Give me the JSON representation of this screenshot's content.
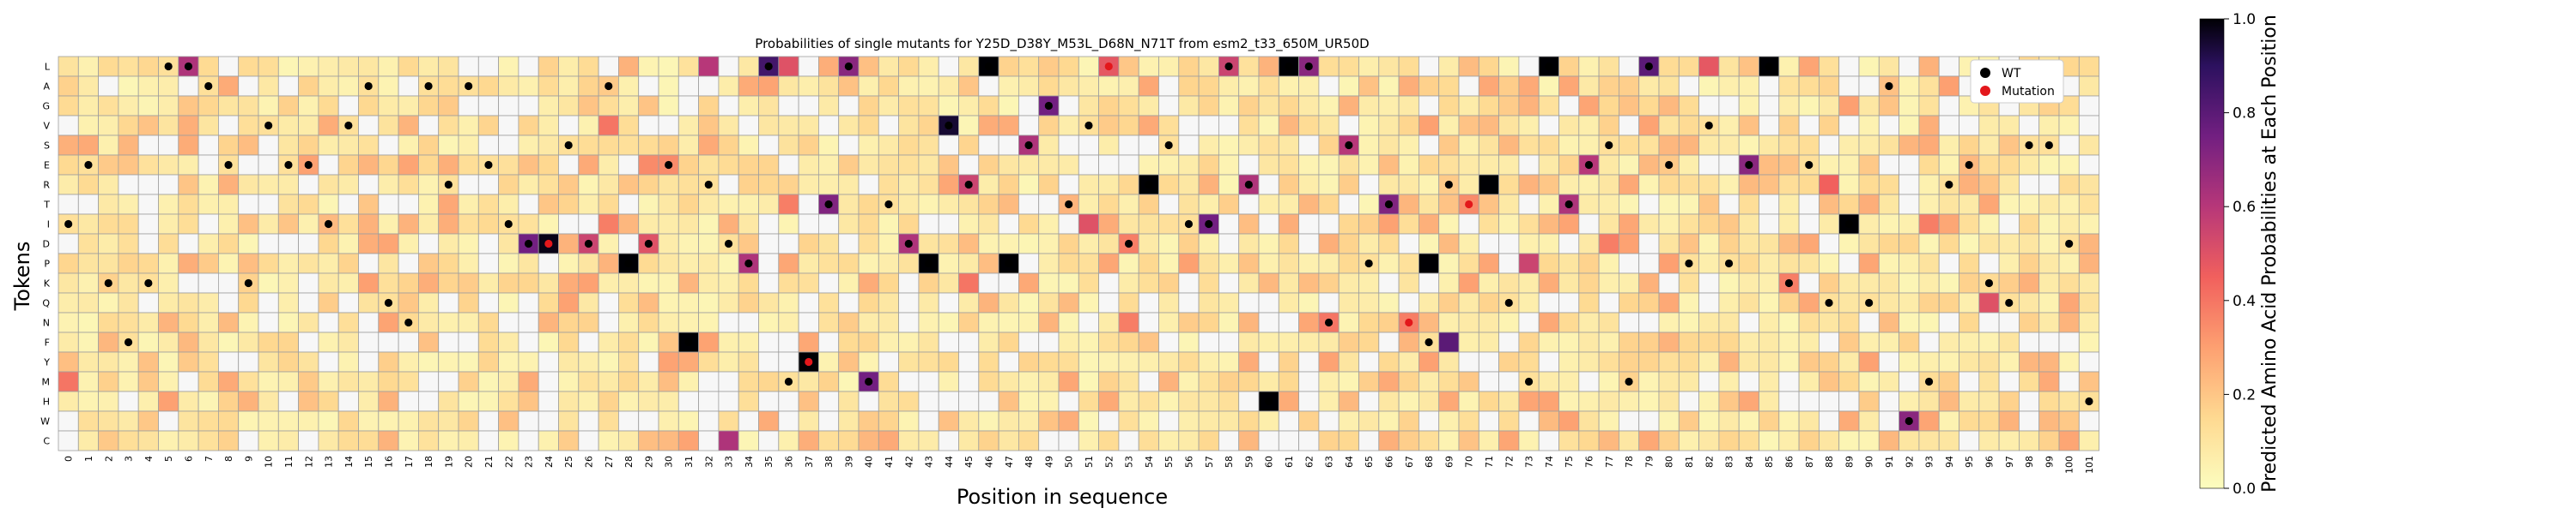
{
  "chart_data": {
    "type": "heatmap",
    "title": "Probabilities of single mutants for Y25D_D38Y_M53L_D68N_N71T from esm2_t33_650M_UR50D",
    "xlabel": "Position in sequence",
    "ylabel": "Tokens",
    "tokens": [
      "L",
      "A",
      "G",
      "V",
      "S",
      "E",
      "R",
      "T",
      "I",
      "D",
      "P",
      "K",
      "Q",
      "N",
      "F",
      "Y",
      "M",
      "H",
      "W",
      "C"
    ],
    "positions": [
      0,
      1,
      2,
      3,
      4,
      5,
      6,
      7,
      8,
      9,
      10,
      11,
      12,
      13,
      14,
      15,
      16,
      17,
      18,
      19,
      20,
      21,
      22,
      23,
      24,
      25,
      26,
      27,
      28,
      29,
      30,
      31,
      32,
      33,
      34,
      35,
      36,
      37,
      38,
      39,
      40,
      41,
      42,
      43,
      44,
      45,
      46,
      47,
      48,
      49,
      50,
      51,
      52,
      53,
      54,
      55,
      56,
      57,
      58,
      59,
      60,
      61,
      62,
      63,
      64,
      65,
      66,
      67,
      68,
      69,
      70,
      71,
      72,
      73,
      74,
      75,
      76,
      77,
      78,
      79,
      80,
      81,
      82,
      83,
      84,
      85,
      86,
      87,
      88,
      89,
      90,
      91,
      92,
      93,
      94,
      95,
      96,
      97,
      98,
      99,
      100,
      101
    ],
    "colorbar": {
      "label": "Predicted Amino Acid Probabilities at Each Position",
      "range": [
        0.0,
        1.0
      ],
      "ticks": [
        "0.0",
        "0.2",
        "0.4",
        "0.6",
        "0.8",
        "1.0"
      ]
    },
    "legend": {
      "placement": "top-right",
      "entries": [
        {
          "label": "WT",
          "color": "#000000"
        },
        {
          "label": "Mutation",
          "color": "#e3171b"
        }
      ]
    },
    "wt": [
      [
        0,
        "I"
      ],
      [
        1,
        "E"
      ],
      [
        2,
        "K"
      ],
      [
        3,
        "F"
      ],
      [
        4,
        "K"
      ],
      [
        5,
        "L"
      ],
      [
        6,
        "L"
      ],
      [
        7,
        "A"
      ],
      [
        8,
        "E"
      ],
      [
        9,
        "K"
      ],
      [
        10,
        "V"
      ],
      [
        11,
        "E"
      ],
      [
        12,
        "E"
      ],
      [
        13,
        "I"
      ],
      [
        14,
        "V"
      ],
      [
        15,
        "A"
      ],
      [
        16,
        "Q"
      ],
      [
        17,
        "N"
      ],
      [
        18,
        "A"
      ],
      [
        19,
        "R"
      ],
      [
        20,
        "A"
      ],
      [
        21,
        "E"
      ],
      [
        22,
        "I"
      ],
      [
        23,
        "D"
      ],
      [
        25,
        "S"
      ],
      [
        26,
        "D"
      ],
      [
        27,
        "A"
      ],
      [
        28,
        "P"
      ],
      [
        29,
        "D"
      ],
      [
        30,
        "E"
      ],
      [
        31,
        "F"
      ],
      [
        32,
        "R"
      ],
      [
        33,
        "D"
      ],
      [
        34,
        "P"
      ],
      [
        35,
        "L"
      ],
      [
        36,
        "M"
      ],
      [
        37,
        "Y"
      ],
      [
        38,
        "T"
      ],
      [
        39,
        "L"
      ],
      [
        40,
        "M"
      ],
      [
        41,
        "T"
      ],
      [
        42,
        "D"
      ],
      [
        43,
        "P"
      ],
      [
        44,
        "V"
      ],
      [
        45,
        "R"
      ],
      [
        46,
        "L"
      ],
      [
        47,
        "P"
      ],
      [
        48,
        "S"
      ],
      [
        49,
        "G"
      ],
      [
        50,
        "T"
      ],
      [
        51,
        "V"
      ],
      [
        53,
        "D"
      ],
      [
        54,
        "R"
      ],
      [
        55,
        "S"
      ],
      [
        56,
        "I"
      ],
      [
        57,
        "I"
      ],
      [
        58,
        "L"
      ],
      [
        59,
        "R"
      ],
      [
        60,
        "H"
      ],
      [
        61,
        "L"
      ],
      [
        62,
        "L"
      ],
      [
        63,
        "N"
      ],
      [
        64,
        "S"
      ],
      [
        65,
        "P"
      ],
      [
        66,
        "T"
      ],
      [
        68,
        "F"
      ],
      [
        69,
        "R"
      ],
      [
        72,
        "Q"
      ],
      [
        73,
        "M"
      ],
      [
        74,
        "L"
      ],
      [
        75,
        "T"
      ],
      [
        76,
        "E"
      ],
      [
        77,
        "S"
      ],
      [
        78,
        "M"
      ],
      [
        79,
        "L"
      ],
      [
        80,
        "E"
      ],
      [
        81,
        "P"
      ],
      [
        82,
        "V"
      ],
      [
        83,
        "P"
      ],
      [
        84,
        "E"
      ],
      [
        85,
        "L"
      ],
      [
        86,
        "K"
      ],
      [
        87,
        "E"
      ],
      [
        88,
        "Q"
      ],
      [
        89,
        "I"
      ],
      [
        90,
        "Q"
      ],
      [
        91,
        "A"
      ],
      [
        92,
        "W"
      ],
      [
        93,
        "M"
      ],
      [
        94,
        "R"
      ],
      [
        95,
        "E"
      ],
      [
        96,
        "K"
      ],
      [
        97,
        "Q"
      ],
      [
        98,
        "S"
      ],
      [
        99,
        "S"
      ],
      [
        100,
        "D"
      ],
      [
        101,
        "H"
      ]
    ],
    "mutations": [
      [
        24,
        "D"
      ],
      [
        37,
        "Y"
      ],
      [
        52,
        "L"
      ],
      [
        67,
        "N"
      ],
      [
        70,
        "T"
      ]
    ],
    "strong_cells": [
      [
        6,
        "L",
        0.62
      ],
      [
        35,
        "L",
        0.85
      ],
      [
        36,
        "L",
        0.5
      ],
      [
        39,
        "L",
        0.7
      ],
      [
        46,
        "L",
        1.0
      ],
      [
        52,
        "L",
        0.48
      ],
      [
        58,
        "L",
        0.55
      ],
      [
        61,
        "L",
        1.0
      ],
      [
        62,
        "L",
        0.7
      ],
      [
        74,
        "L",
        1.0
      ],
      [
        79,
        "L",
        0.8
      ],
      [
        82,
        "L",
        0.48
      ],
      [
        85,
        "L",
        1.0
      ],
      [
        32,
        "L",
        0.6
      ],
      [
        49,
        "G",
        0.75
      ],
      [
        44,
        "V",
        0.95
      ],
      [
        27,
        "V",
        0.4
      ],
      [
        48,
        "S",
        0.62
      ],
      [
        64,
        "S",
        0.6
      ],
      [
        29,
        "E",
        0.35
      ],
      [
        30,
        "E",
        0.35
      ],
      [
        76,
        "E",
        0.6
      ],
      [
        84,
        "E",
        0.7
      ],
      [
        45,
        "R",
        0.55
      ],
      [
        54,
        "R",
        1.0
      ],
      [
        59,
        "R",
        0.62
      ],
      [
        71,
        "R",
        1.0
      ],
      [
        88,
        "R",
        0.45
      ],
      [
        38,
        "T",
        0.72
      ],
      [
        66,
        "T",
        0.72
      ],
      [
        70,
        "T",
        0.35
      ],
      [
        75,
        "T",
        0.62
      ],
      [
        36,
        "T",
        0.38
      ],
      [
        57,
        "I",
        0.75
      ],
      [
        89,
        "I",
        1.0
      ],
      [
        27,
        "I",
        0.38
      ],
      [
        51,
        "I",
        0.5
      ],
      [
        93,
        "I",
        0.38
      ],
      [
        23,
        "D",
        0.75
      ],
      [
        24,
        "D",
        0.98
      ],
      [
        26,
        "D",
        0.55
      ],
      [
        29,
        "D",
        0.5
      ],
      [
        42,
        "D",
        0.62
      ],
      [
        53,
        "D",
        0.38
      ],
      [
        77,
        "D",
        0.38
      ],
      [
        28,
        "P",
        1.0
      ],
      [
        34,
        "P",
        0.62
      ],
      [
        43,
        "P",
        1.0
      ],
      [
        47,
        "P",
        1.0
      ],
      [
        68,
        "P",
        1.0
      ],
      [
        73,
        "P",
        0.55
      ],
      [
        45,
        "K",
        0.4
      ],
      [
        86,
        "K",
        0.38
      ],
      [
        96,
        "Q",
        0.5
      ],
      [
        63,
        "N",
        0.4
      ],
      [
        67,
        "N",
        0.38
      ],
      [
        53,
        "N",
        0.38
      ],
      [
        31,
        "F",
        1.0
      ],
      [
        69,
        "F",
        0.8
      ],
      [
        37,
        "Y",
        1.0
      ],
      [
        40,
        "M",
        0.75
      ],
      [
        0,
        "M",
        0.4
      ],
      [
        60,
        "H",
        1.0
      ],
      [
        92,
        "W",
        0.7
      ],
      [
        33,
        "C",
        0.62
      ]
    ]
  }
}
